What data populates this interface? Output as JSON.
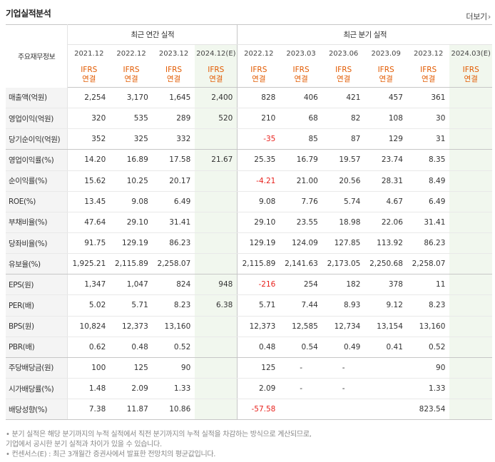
{
  "header": {
    "title": "기업실적분석",
    "more_label": "더보기",
    "more_icon": "chevron-right"
  },
  "table": {
    "label_header": "주요재무정보",
    "group_annual": "최근 연간 실적",
    "group_quarter": "최근 분기 실적",
    "periods": [
      "2021.12",
      "2022.12",
      "2023.12",
      "2024.12(E)",
      "2022.12",
      "2023.03",
      "2023.06",
      "2023.09",
      "2023.12",
      "2024.03(E)"
    ],
    "ifrs_top": "IFRS",
    "ifrs_bottom": "연결",
    "rows": [
      {
        "label": "매출액(억원)",
        "values": [
          "2,254",
          "3,170",
          "1,645",
          "2,400",
          "828",
          "406",
          "421",
          "457",
          "361",
          ""
        ]
      },
      {
        "label": "영업이익(억원)",
        "values": [
          "320",
          "535",
          "289",
          "520",
          "210",
          "68",
          "82",
          "108",
          "30",
          ""
        ]
      },
      {
        "label": "당기순이익(억원)",
        "values": [
          "352",
          "325",
          "332",
          "",
          "-35",
          "85",
          "87",
          "129",
          "31",
          ""
        ]
      },
      {
        "label": "영업이익률(%)",
        "values": [
          "14.20",
          "16.89",
          "17.58",
          "21.67",
          "25.35",
          "16.79",
          "19.57",
          "23.74",
          "8.35",
          ""
        ]
      },
      {
        "label": "순이익률(%)",
        "values": [
          "15.62",
          "10.25",
          "20.17",
          "",
          "-4.21",
          "21.00",
          "20.56",
          "28.31",
          "8.49",
          ""
        ]
      },
      {
        "label": "ROE(%)",
        "values": [
          "13.45",
          "9.08",
          "6.49",
          "",
          "9.08",
          "7.76",
          "5.74",
          "4.67",
          "6.49",
          ""
        ]
      },
      {
        "label": "부채비율(%)",
        "values": [
          "47.64",
          "29.10",
          "31.41",
          "",
          "29.10",
          "23.55",
          "18.98",
          "22.06",
          "31.41",
          ""
        ]
      },
      {
        "label": "당좌비율(%)",
        "values": [
          "91.75",
          "129.19",
          "86.23",
          "",
          "129.19",
          "124.09",
          "127.85",
          "113.92",
          "86.23",
          ""
        ]
      },
      {
        "label": "유보율(%)",
        "values": [
          "1,925.21",
          "2,115.89",
          "2,258.07",
          "",
          "2,115.89",
          "2,141.63",
          "2,173.05",
          "2,250.68",
          "2,258.07",
          ""
        ]
      },
      {
        "label": "EPS(원)",
        "values": [
          "1,347",
          "1,047",
          "824",
          "948",
          "-216",
          "254",
          "182",
          "378",
          "11",
          ""
        ]
      },
      {
        "label": "PER(배)",
        "values": [
          "5.02",
          "5.71",
          "8.23",
          "6.38",
          "5.71",
          "7.44",
          "8.93",
          "9.12",
          "8.23",
          ""
        ]
      },
      {
        "label": "BPS(원)",
        "values": [
          "10,824",
          "12,373",
          "13,160",
          "",
          "12,373",
          "12,585",
          "12,734",
          "13,154",
          "13,160",
          ""
        ]
      },
      {
        "label": "PBR(배)",
        "values": [
          "0.62",
          "0.48",
          "0.52",
          "",
          "0.48",
          "0.54",
          "0.49",
          "0.41",
          "0.52",
          ""
        ]
      },
      {
        "label": "주당배당금(원)",
        "values": [
          "100",
          "125",
          "90",
          "",
          "125",
          "-",
          "-",
          "",
          "90",
          ""
        ]
      },
      {
        "label": "시가배당률(%)",
        "values": [
          "1.48",
          "2.09",
          "1.33",
          "",
          "2.09",
          "-",
          "-",
          "",
          "1.33",
          ""
        ]
      },
      {
        "label": "배당성향(%)",
        "values": [
          "7.38",
          "11.87",
          "10.86",
          "",
          "-57.58",
          "",
          "",
          "",
          "823.54",
          ""
        ]
      }
    ]
  },
  "notes": [
    "• 분기 실적은 해당 분기까지의 누적 실적에서 직전 분기까지의 누적 실적을 차감하는 방식으로 계산되므로,",
    "   기업에서 공시한 분기 실적과 차이가 있을 수 있습니다.",
    "• 컨센서스(E) : 최근 3개월간 증권사에서 발표한 전망치의 평균값입니다."
  ],
  "colors": {
    "ifrs": "#e25a00",
    "negative": "#e8231e",
    "estimate_bg": "#f1f7ee",
    "label_bg": "#f4f4f4"
  }
}
